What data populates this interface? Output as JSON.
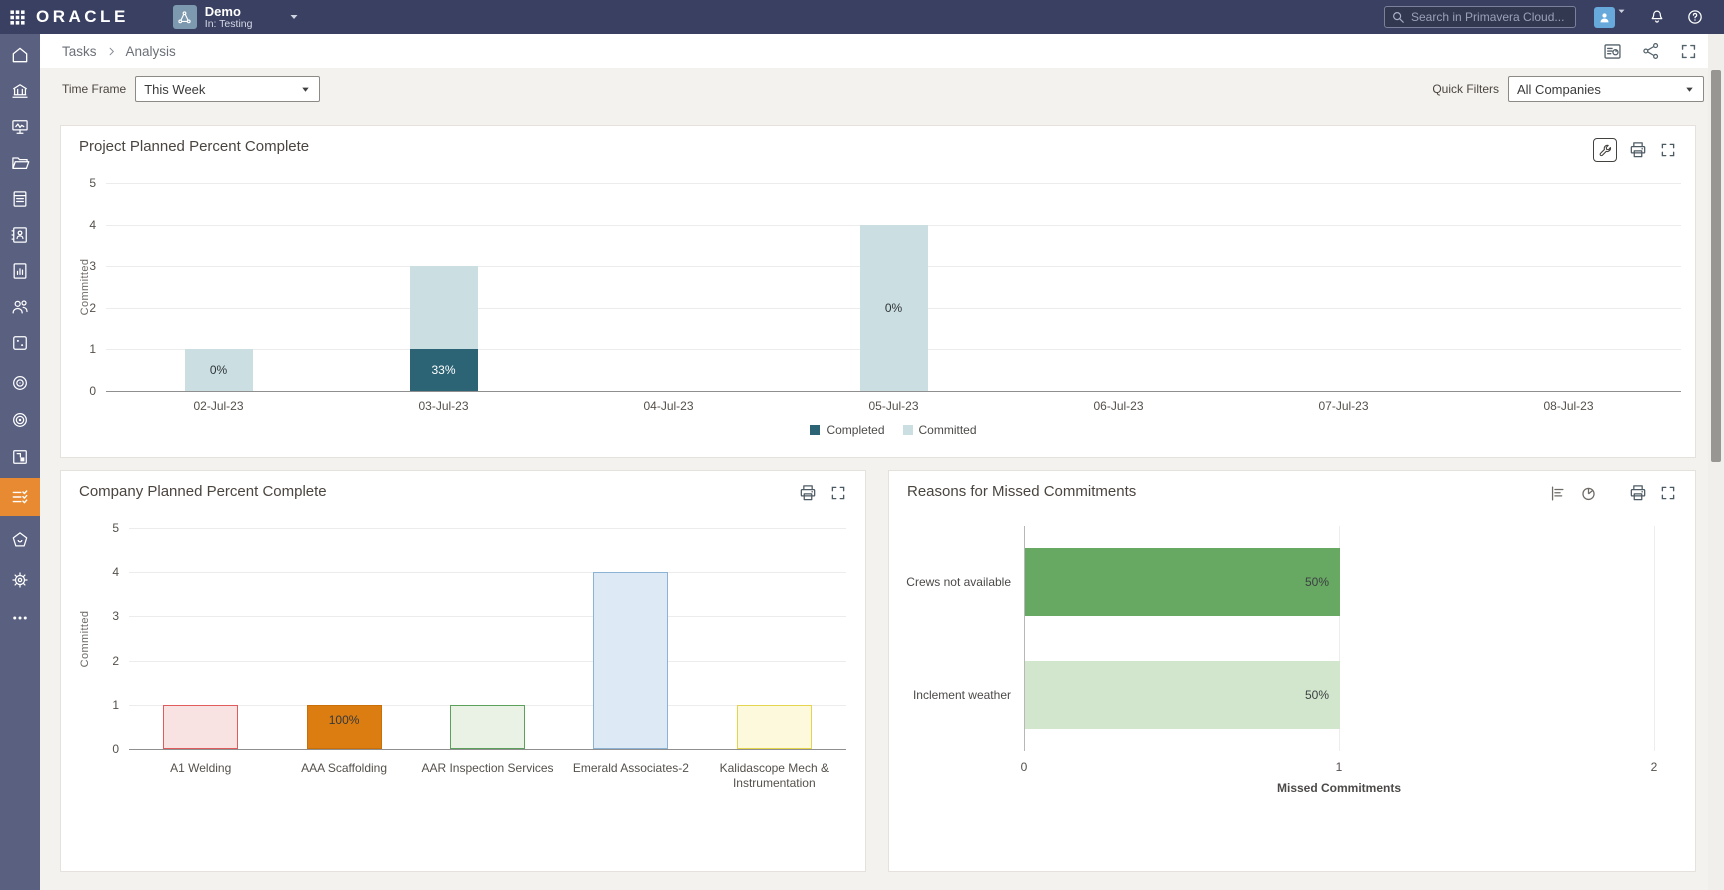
{
  "topbar": {
    "logo": "ORACLE",
    "project": {
      "title": "Demo",
      "context": "In: Testing"
    },
    "search": {
      "placeholder": "Search in Primavera Cloud..."
    },
    "icons": [
      "app-launcher",
      "user-avatar",
      "notifications-bell",
      "help"
    ]
  },
  "breadcrumb": {
    "items": [
      "Tasks",
      "Analysis"
    ],
    "actions": [
      "manage-dashboard",
      "share",
      "fullscreen"
    ]
  },
  "filters": {
    "time_frame": {
      "label": "Time Frame",
      "value": "This Week"
    },
    "quick_filters": {
      "label": "Quick Filters",
      "value": "All Companies"
    }
  },
  "sidebar": {
    "active_index": 12,
    "items": [
      {
        "icon": "home-icon"
      },
      {
        "icon": "bank-icon"
      },
      {
        "icon": "presentation-chart-icon"
      },
      {
        "icon": "folder-icon"
      },
      {
        "icon": "document-icon"
      },
      {
        "icon": "contact-card-icon"
      },
      {
        "icon": "report-chart-icon"
      },
      {
        "icon": "people-icon"
      },
      {
        "icon": "dice-icon"
      },
      {
        "icon": "radar-icon"
      },
      {
        "icon": "target-icon"
      },
      {
        "icon": "workflow-icon"
      },
      {
        "icon": "checklist-icon"
      },
      {
        "icon": "stamp-icon"
      },
      {
        "icon": "gear-icon"
      },
      {
        "icon": "ellipsis-icon"
      }
    ]
  },
  "colors": {
    "topbar_bg": "#394061",
    "sidebar_bg": "#5a6080",
    "sidebar_active": "#e88a31",
    "avatar_bg": "#66a9da",
    "project_tile_bg": "#7d99b0",
    "page_bg": "#f4f2ee",
    "completed": "#2d6475",
    "committed": "#cbdee1"
  },
  "chart_data": [
    {
      "id": "project_planned",
      "type": "bar",
      "stacked": true,
      "title": "Project Planned Percent Complete",
      "ylabel": "Committed",
      "ylim": [
        0,
        5
      ],
      "yticks": [
        0,
        1,
        2,
        3,
        4,
        5
      ],
      "grid": true,
      "legend_position": "bottom",
      "categories": [
        "02-Jul-23",
        "03-Jul-23",
        "04-Jul-23",
        "05-Jul-23",
        "06-Jul-23",
        "07-Jul-23",
        "08-Jul-23"
      ],
      "series": [
        {
          "name": "Completed",
          "color": "#2d6475",
          "values": [
            0,
            1,
            0,
            0,
            0,
            0,
            0
          ]
        },
        {
          "name": "Committed",
          "color": "#cbdee1",
          "values": [
            1,
            2,
            0,
            4,
            0,
            0,
            0
          ]
        }
      ],
      "bar_labels": [
        "0%",
        "33%",
        "",
        "0%",
        "",
        "",
        ""
      ],
      "actions": [
        "configure",
        "print",
        "fullscreen"
      ]
    },
    {
      "id": "company_planned",
      "type": "bar",
      "title": "Company Planned Percent Complete",
      "ylabel": "Committed",
      "ylim": [
        0,
        5
      ],
      "yticks": [
        0,
        1,
        2,
        3,
        4,
        5
      ],
      "grid": true,
      "categories": [
        "A1 Welding",
        "AAA Scaffolding",
        "AAR Inspection Services",
        "Emerald Associates-2",
        "Kalidascope Mech & Instrumentation"
      ],
      "values": [
        1,
        1,
        1,
        4,
        1
      ],
      "bar_fills": [
        "#f9e2e2",
        "#dc7d11",
        "#eaf2e6",
        "#ddeaf6",
        "#fcf9dc"
      ],
      "bar_borders": [
        "#e05c5c",
        "#c86f08",
        "#5ba05b",
        "#8cb2d4",
        "#e5d44e"
      ],
      "bar_labels": [
        "",
        "100%",
        "",
        "",
        ""
      ],
      "actions": [
        "print",
        "fullscreen"
      ]
    },
    {
      "id": "missed_commitments",
      "type": "bar-horizontal",
      "title": "Reasons for Missed Commitments",
      "xlabel": "Missed Commitments",
      "xlim": [
        0,
        2
      ],
      "xticks": [
        0,
        1,
        2
      ],
      "grid": true,
      "categories": [
        "Crews not available",
        "Inclement weather"
      ],
      "values": [
        1,
        1
      ],
      "bar_fills": [
        "#67a862",
        "#d2e6cd"
      ],
      "bar_labels": [
        "50%",
        "50%"
      ],
      "actions": [
        "bar-chart",
        "pie-chart",
        "print",
        "fullscreen"
      ]
    }
  ]
}
